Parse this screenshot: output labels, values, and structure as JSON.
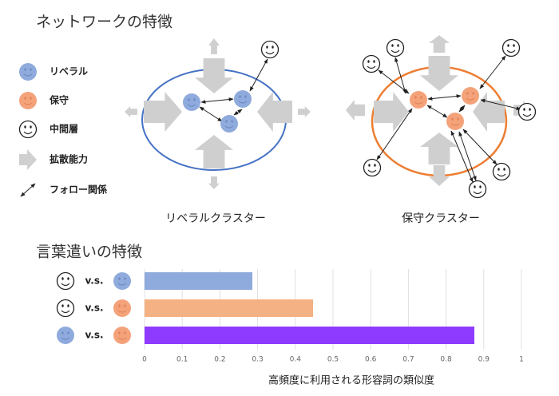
{
  "title": "ネットワークの特徴",
  "legend": [
    "リベラル",
    "保守",
    "中間層",
    "拡散能力",
    "フォロー関係"
  ],
  "clusters": [
    "リベラルクラスター",
    "保守クラスター"
  ],
  "chart_data": {
    "type": "bar",
    "orientation": "horizontal",
    "title": "言葉遣いの特徴",
    "categories": [
      "v.s.",
      "v.s.",
      "v.s."
    ],
    "values": [
      0.286,
      0.447,
      0.875
    ],
    "colors": [
      "#8faadc",
      "#f4b183",
      "#8f3bff"
    ],
    "xlabel": "高頻度に利用される形容詞の類似度",
    "xlim": [
      0,
      1
    ],
    "xticks": [
      0,
      0.1,
      0.2,
      0.3,
      0.4,
      0.5,
      0.6,
      0.7,
      0.8,
      0.9,
      1
    ],
    "grid": true
  }
}
